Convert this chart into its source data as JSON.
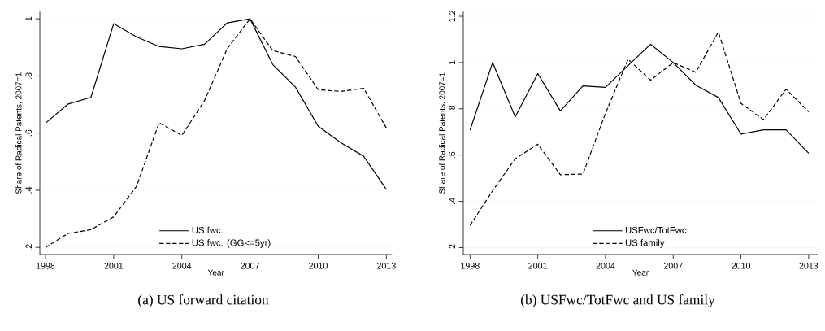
{
  "chart_data": [
    {
      "type": "line",
      "xlabel": "Year",
      "ylabel": "Share of Radical Patents, 2007=1",
      "annotations": [
        "(a) US forward citation"
      ],
      "x": [
        1998,
        1999,
        2000,
        2001,
        2002,
        2003,
        2004,
        2005,
        2006,
        2007,
        2008,
        2009,
        2010,
        2011,
        2012,
        2013
      ],
      "xlim": [
        1997.75,
        2013.25
      ],
      "ylim": [
        0.175,
        1.025
      ],
      "xticks": [
        1998,
        2001,
        2004,
        2007,
        2010,
        2013
      ],
      "yticks": [
        {
          "value": 0.2,
          "label": ".2"
        },
        {
          "value": 0.4,
          "label": ".4"
        },
        {
          "value": 0.6,
          "label": ".6"
        },
        {
          "value": 0.8,
          "label": ".8"
        },
        {
          "value": 1,
          "label": "1"
        }
      ],
      "grid": "y",
      "legend": "bottom",
      "series": [
        {
          "name": "US fwc.",
          "color": "#000000",
          "line_style": "solid",
          "values": [
            0.635,
            0.702,
            0.725,
            0.983,
            0.937,
            0.903,
            0.895,
            0.911,
            0.986,
            1.0,
            0.84,
            0.761,
            0.624,
            0.566,
            0.519,
            0.403
          ]
        },
        {
          "name": "US fwc. (GG<=5yr)",
          "color": "#000000",
          "line_style": "dashed",
          "values": [
            0.2,
            0.249,
            0.262,
            0.307,
            0.413,
            0.636,
            0.592,
            0.714,
            0.896,
            1.0,
            0.889,
            0.868,
            0.752,
            0.746,
            0.757,
            0.618
          ]
        }
      ]
    },
    {
      "type": "line",
      "xlabel": "Year",
      "ylabel": "Share of Radical Patents, 2007=1",
      "annotations": [
        "(b) USFwc/TotFwc and US family"
      ],
      "x": [
        1998,
        1999,
        2000,
        2001,
        2002,
        2003,
        2004,
        2005,
        2006,
        2007,
        2008,
        2009,
        2010,
        2011,
        2012,
        2013
      ],
      "xlim": [
        1997.7,
        2013.4
      ],
      "ylim": [
        0.17,
        1.22
      ],
      "xticks": [
        1998,
        2001,
        2004,
        2007,
        2010,
        2013
      ],
      "yticks": [
        {
          "value": 0.2,
          "label": ".2"
        },
        {
          "value": 0.4,
          "label": ".4"
        },
        {
          "value": 0.6,
          "label": ".6"
        },
        {
          "value": 0.8,
          "label": ".8"
        },
        {
          "value": 1,
          "label": "1"
        },
        {
          "value": 1.2,
          "label": "1.2"
        }
      ],
      "grid": "y",
      "legend": "bottom",
      "series": [
        {
          "name": "USFwc/TotFwc",
          "color": "#000000",
          "line_style": "solid",
          "values": [
            0.708,
            1.0,
            0.765,
            0.952,
            0.791,
            0.899,
            0.893,
            0.987,
            1.079,
            1.0,
            0.902,
            0.849,
            0.691,
            0.709,
            0.709,
            0.608
          ]
        },
        {
          "name": "US family",
          "color": "#000000",
          "line_style": "dashed",
          "values": [
            0.296,
            0.446,
            0.584,
            0.647,
            0.515,
            0.518,
            0.781,
            1.014,
            0.924,
            1.0,
            0.958,
            1.132,
            0.824,
            0.753,
            0.885,
            0.787
          ]
        }
      ]
    }
  ]
}
